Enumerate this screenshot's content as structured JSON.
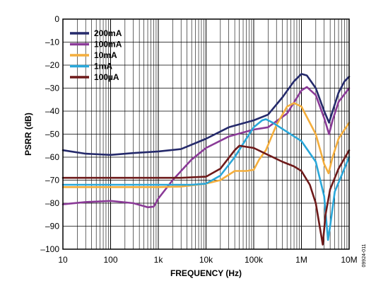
{
  "chart_data": {
    "type": "line",
    "xlabel": "FREQUENCY (Hz)",
    "ylabel": "PSRR (dB)",
    "x_scale": "log",
    "xlim": [
      10,
      10000000
    ],
    "ylim": [
      -100,
      0
    ],
    "grid": true,
    "legend_position": "top-left",
    "x_ticks": [
      {
        "value": 10,
        "label": "10"
      },
      {
        "value": 100,
        "label": "100"
      },
      {
        "value": 1000,
        "label": "1k"
      },
      {
        "value": 10000,
        "label": "10k"
      },
      {
        "value": 100000,
        "label": "100k"
      },
      {
        "value": 1000000,
        "label": "1M"
      },
      {
        "value": 10000000,
        "label": "10M"
      }
    ],
    "y_ticks": [
      {
        "value": 0,
        "label": "0"
      },
      {
        "value": -10,
        "label": "–10"
      },
      {
        "value": -20,
        "label": "–20"
      },
      {
        "value": -30,
        "label": "–30"
      },
      {
        "value": -40,
        "label": "–40"
      },
      {
        "value": -50,
        "label": "–50"
      },
      {
        "value": -60,
        "label": "–60"
      },
      {
        "value": -70,
        "label": "–70"
      },
      {
        "value": -80,
        "label": "–80"
      },
      {
        "value": -90,
        "label": "–90"
      },
      {
        "value": -100,
        "label": "–100"
      }
    ],
    "series": [
      {
        "name": "200mA",
        "color": "#252a6b",
        "points": [
          [
            10,
            -57
          ],
          [
            30,
            -58.5
          ],
          [
            100,
            -59
          ],
          [
            300,
            -58.2
          ],
          [
            1000,
            -57.5
          ],
          [
            3000,
            -56.5
          ],
          [
            10000,
            -52
          ],
          [
            30000,
            -47
          ],
          [
            100000,
            -44
          ],
          [
            200000,
            -41.5
          ],
          [
            400000,
            -34
          ],
          [
            700000,
            -27
          ],
          [
            1000000,
            -23.8
          ],
          [
            1300000,
            -24.5
          ],
          [
            2000000,
            -30
          ],
          [
            3000000,
            -40
          ],
          [
            3800000,
            -45
          ],
          [
            4500000,
            -40
          ],
          [
            6000000,
            -32
          ],
          [
            8000000,
            -27
          ],
          [
            10000000,
            -25
          ]
        ]
      },
      {
        "name": "100mA",
        "color": "#8a3a97",
        "points": [
          [
            10,
            -80.5
          ],
          [
            30,
            -79.5
          ],
          [
            100,
            -79
          ],
          [
            300,
            -80
          ],
          [
            600,
            -81.8
          ],
          [
            800,
            -81.5
          ],
          [
            1000,
            -78
          ],
          [
            2000,
            -70
          ],
          [
            5000,
            -61
          ],
          [
            10000,
            -56
          ],
          [
            30000,
            -51
          ],
          [
            100000,
            -48
          ],
          [
            200000,
            -47
          ],
          [
            500000,
            -41
          ],
          [
            1000000,
            -31
          ],
          [
            1300000,
            -29.5
          ],
          [
            2000000,
            -33
          ],
          [
            3000000,
            -43
          ],
          [
            3800000,
            -50
          ],
          [
            4500000,
            -44
          ],
          [
            6000000,
            -36
          ],
          [
            10000000,
            -30
          ]
        ]
      },
      {
        "name": "10mA",
        "color": "#f4ae3d",
        "points": [
          [
            10,
            -73
          ],
          [
            100,
            -73
          ],
          [
            1000,
            -73
          ],
          [
            3000,
            -72.8
          ],
          [
            10000,
            -71.5
          ],
          [
            20000,
            -70
          ],
          [
            40000,
            -66
          ],
          [
            70000,
            -66
          ],
          [
            100000,
            -65.5
          ],
          [
            130000,
            -61
          ],
          [
            180000,
            -57
          ],
          [
            300000,
            -46
          ],
          [
            500000,
            -38
          ],
          [
            700000,
            -36.5
          ],
          [
            1000000,
            -38
          ],
          [
            2000000,
            -50
          ],
          [
            3000000,
            -63
          ],
          [
            3700000,
            -67
          ],
          [
            4500000,
            -60
          ],
          [
            6000000,
            -52
          ],
          [
            10000000,
            -45
          ]
        ]
      },
      {
        "name": "1mA",
        "color": "#2aa7d9",
        "points": [
          [
            10,
            -72
          ],
          [
            100,
            -72
          ],
          [
            1000,
            -72
          ],
          [
            5000,
            -72
          ],
          [
            10000,
            -71.5
          ],
          [
            20000,
            -68
          ],
          [
            40000,
            -60
          ],
          [
            70000,
            -52
          ],
          [
            100000,
            -47
          ],
          [
            150000,
            -44
          ],
          [
            180000,
            -43.5
          ],
          [
            250000,
            -45
          ],
          [
            500000,
            -49
          ],
          [
            1000000,
            -53
          ],
          [
            2000000,
            -62
          ],
          [
            3000000,
            -77
          ],
          [
            3600000,
            -96
          ],
          [
            4000000,
            -90
          ],
          [
            5000000,
            -75
          ],
          [
            10000000,
            -60
          ]
        ]
      },
      {
        "name": "100µA",
        "color": "#6e1a1a",
        "points": [
          [
            10,
            -69
          ],
          [
            100,
            -69
          ],
          [
            1000,
            -69
          ],
          [
            3000,
            -69
          ],
          [
            10000,
            -68.5
          ],
          [
            20000,
            -65
          ],
          [
            40000,
            -57
          ],
          [
            50000,
            -55
          ],
          [
            70000,
            -55.5
          ],
          [
            100000,
            -56
          ],
          [
            200000,
            -59
          ],
          [
            400000,
            -62
          ],
          [
            700000,
            -64
          ],
          [
            1000000,
            -66
          ],
          [
            1500000,
            -72
          ],
          [
            2000000,
            -80
          ],
          [
            2500000,
            -92
          ],
          [
            2800000,
            -98
          ],
          [
            3200000,
            -85
          ],
          [
            4000000,
            -74
          ],
          [
            6000000,
            -65
          ],
          [
            10000000,
            -57
          ]
        ]
      }
    ],
    "annotation": "09924-011"
  }
}
